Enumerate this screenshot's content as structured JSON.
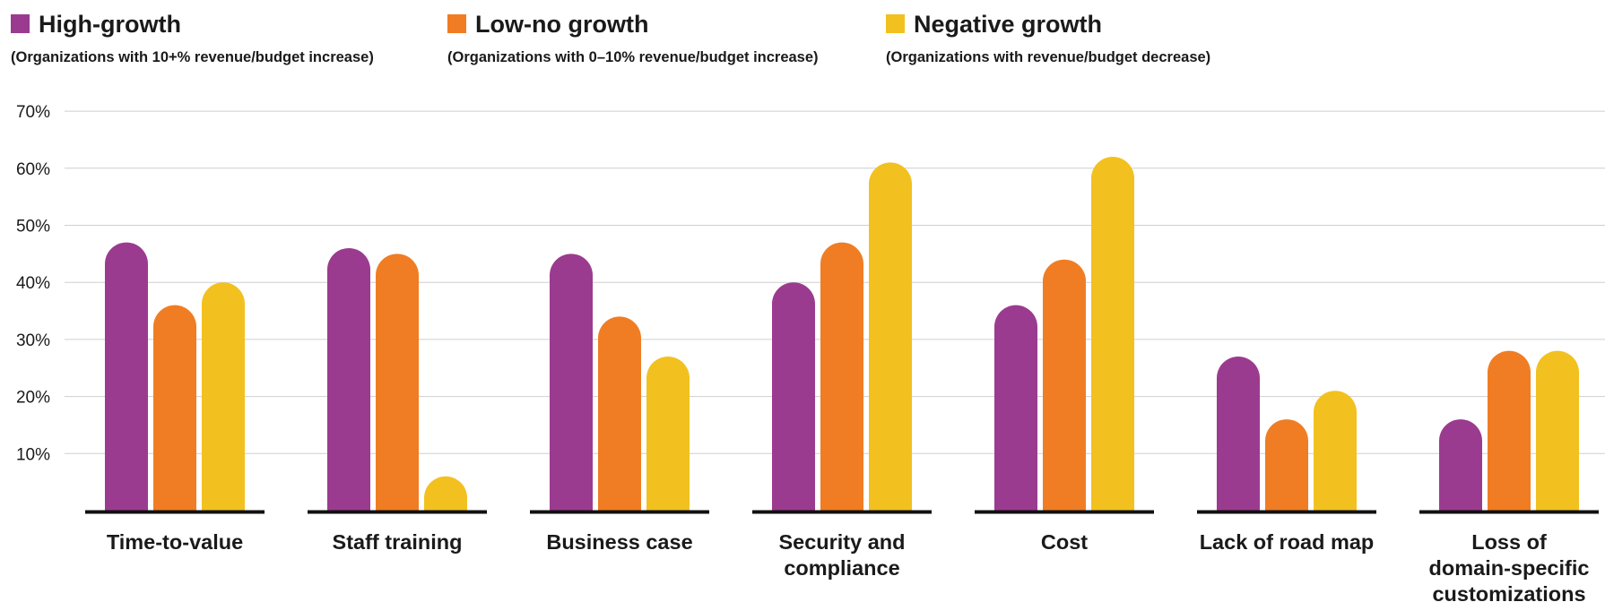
{
  "legend": [
    {
      "name": "High-growth",
      "description": "(Organizations with 10+% revenue/budget increase)",
      "color": "#9b3b8f"
    },
    {
      "name": "Low-no growth",
      "description": "(Organizations with 0–10% revenue/budget increase)",
      "color": "#f07d23"
    },
    {
      "name": "Negative growth",
      "description": "(Organizations with revenue/budget decrease)",
      "color": "#f2c11f"
    }
  ],
  "chart_data": {
    "type": "bar",
    "categories": [
      [
        "Time-to-value"
      ],
      [
        "Staff training"
      ],
      [
        "Business case"
      ],
      [
        "Security and",
        "compliance"
      ],
      [
        "Cost"
      ],
      [
        "Lack of road map"
      ],
      [
        "Loss of",
        "domain-specific",
        "customizations"
      ]
    ],
    "series": [
      {
        "name": "High-growth",
        "color": "#9b3b8f",
        "values": [
          47,
          46,
          45,
          40,
          36,
          27,
          16
        ]
      },
      {
        "name": "Low-no growth",
        "color": "#f07d23",
        "values": [
          36,
          45,
          34,
          47,
          44,
          16,
          28
        ]
      },
      {
        "name": "Negative growth",
        "color": "#f2c11f",
        "values": [
          40,
          6,
          27,
          61,
          62,
          21,
          28
        ]
      }
    ],
    "yticks": [
      "10%",
      "20%",
      "30%",
      "40%",
      "50%",
      "60%",
      "70%"
    ],
    "ytick_values": [
      10,
      20,
      30,
      40,
      50,
      60,
      70
    ],
    "ylim": [
      0,
      70
    ],
    "grid": true,
    "legend_position": "top"
  }
}
